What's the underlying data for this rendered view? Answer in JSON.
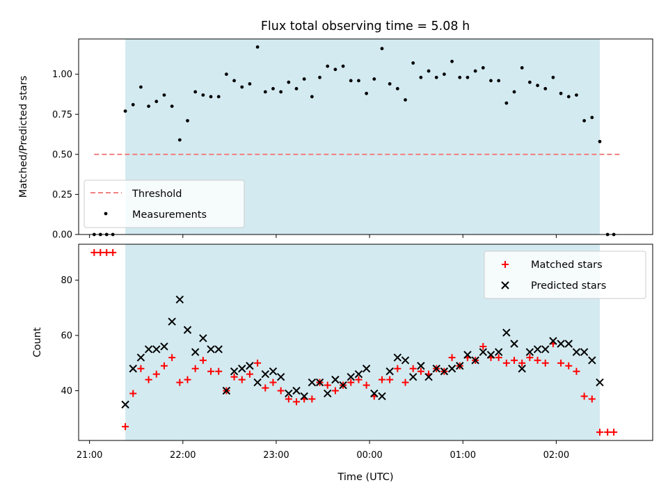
{
  "chart_data": [
    {
      "type": "scatter",
      "title": "Flux total observing time = 5.08 h",
      "ylabel": "Matched/Predicted stars",
      "xlabel": "",
      "ylim": [
        0,
        1.22
      ],
      "yticks": [
        "0.00",
        "0.25",
        "0.50",
        "0.75",
        "1.00"
      ],
      "ytick_values": [
        0,
        0.25,
        0.5,
        0.75,
        1.0
      ],
      "shaded_interval": [
        "21:23",
        "02:28"
      ],
      "shade_color": "#d3eaf0",
      "legend": {
        "position": "lower left"
      },
      "series": [
        {
          "name": "Threshold",
          "style": "dashed-line",
          "color": "#f08080",
          "x": [
            "21:03",
            "02:42"
          ],
          "y": [
            0.5,
            0.5
          ]
        },
        {
          "name": "Measurements",
          "style": "dot",
          "color": "#000000",
          "x": [
            "21:03",
            "21:07",
            "21:11",
            "21:15",
            "21:23",
            "21:28",
            "21:33",
            "21:38",
            "21:43",
            "21:48",
            "21:53",
            "21:58",
            "22:03",
            "22:08",
            "22:13",
            "22:18",
            "22:23",
            "22:28",
            "22:33",
            "22:38",
            "22:43",
            "22:48",
            "22:53",
            "22:58",
            "23:03",
            "23:08",
            "23:13",
            "23:18",
            "23:23",
            "23:28",
            "23:33",
            "23:38",
            "23:43",
            "23:48",
            "23:53",
            "23:58",
            "00:03",
            "00:08",
            "00:13",
            "00:18",
            "00:23",
            "00:28",
            "00:33",
            "00:38",
            "00:43",
            "00:48",
            "00:53",
            "00:58",
            "01:03",
            "01:08",
            "01:13",
            "01:18",
            "01:23",
            "01:28",
            "01:33",
            "01:38",
            "01:43",
            "01:48",
            "01:53",
            "01:58",
            "02:03",
            "02:08",
            "02:13",
            "02:18",
            "02:23",
            "02:28",
            "02:33",
            "02:37"
          ],
          "y": [
            0,
            0,
            0,
            0,
            0.77,
            0.81,
            0.92,
            0.8,
            0.83,
            0.87,
            0.8,
            0.59,
            0.71,
            0.89,
            0.87,
            0.86,
            0.86,
            1.0,
            0.96,
            0.92,
            0.94,
            1.17,
            0.89,
            0.91,
            0.89,
            0.95,
            0.91,
            0.97,
            0.86,
            0.98,
            1.05,
            1.03,
            1.05,
            0.96,
            0.96,
            0.88,
            0.97,
            1.16,
            0.94,
            0.91,
            0.84,
            1.07,
            0.98,
            1.02,
            0.98,
            1.0,
            1.08,
            0.98,
            0.98,
            1.02,
            1.04,
            0.96,
            0.96,
            0.82,
            0.89,
            1.04,
            0.95,
            0.93,
            0.91,
            0.98,
            0.88,
            0.86,
            0.87,
            0.71,
            0.73,
            0.58,
            0,
            0
          ]
        }
      ]
    },
    {
      "type": "scatter",
      "title": "",
      "ylabel": "Count",
      "xlabel": "Time (UTC)",
      "ylim": [
        22,
        93
      ],
      "yticks": [
        "40",
        "60",
        "80"
      ],
      "ytick_values": [
        40,
        60,
        80
      ],
      "xticks": [
        "21:00",
        "22:00",
        "23:00",
        "00:00",
        "01:00",
        "02:00"
      ],
      "xlim": [
        "20:53",
        "03:02"
      ],
      "shaded_interval": [
        "21:23",
        "02:28"
      ],
      "shade_color": "#d3eaf0",
      "legend": {
        "position": "upper right"
      },
      "series": [
        {
          "name": "Matched stars",
          "style": "plus",
          "color": "#ff0000",
          "x": [
            "21:03",
            "21:07",
            "21:11",
            "21:15",
            "21:23",
            "21:28",
            "21:33",
            "21:38",
            "21:43",
            "21:48",
            "21:53",
            "21:58",
            "22:03",
            "22:08",
            "22:13",
            "22:18",
            "22:23",
            "22:28",
            "22:33",
            "22:38",
            "22:43",
            "22:48",
            "22:53",
            "22:58",
            "23:03",
            "23:08",
            "23:13",
            "23:18",
            "23:23",
            "23:28",
            "23:33",
            "23:38",
            "23:43",
            "23:48",
            "23:53",
            "23:58",
            "00:03",
            "00:08",
            "00:13",
            "00:18",
            "00:23",
            "00:28",
            "00:33",
            "00:38",
            "00:43",
            "00:48",
            "00:53",
            "00:58",
            "01:03",
            "01:08",
            "01:13",
            "01:18",
            "01:23",
            "01:28",
            "01:33",
            "01:38",
            "01:43",
            "01:48",
            "01:53",
            "01:58",
            "02:03",
            "02:08",
            "02:13",
            "02:18",
            "02:23",
            "02:28",
            "02:33",
            "02:37"
          ],
          "y": [
            90,
            90,
            90,
            90,
            27,
            39,
            48,
            44,
            46,
            49,
            52,
            43,
            44,
            48,
            51,
            47,
            47,
            40,
            45,
            44,
            46,
            50,
            41,
            43,
            40,
            37,
            36,
            37,
            37,
            43,
            42,
            40,
            42,
            43,
            44,
            42,
            38,
            44,
            44,
            48,
            43,
            48,
            47,
            46,
            48,
            47,
            52,
            49,
            52,
            51,
            56,
            52,
            52,
            50,
            51,
            50,
            52,
            51,
            50,
            57,
            50,
            49,
            47,
            38,
            37,
            25,
            25,
            25
          ]
        },
        {
          "name": "Predicted stars",
          "style": "x",
          "color": "#000000",
          "x": [
            "21:23",
            "21:28",
            "21:33",
            "21:38",
            "21:43",
            "21:48",
            "21:53",
            "21:58",
            "22:03",
            "22:08",
            "22:13",
            "22:18",
            "22:23",
            "22:28",
            "22:33",
            "22:38",
            "22:43",
            "22:48",
            "22:53",
            "22:58",
            "23:03",
            "23:08",
            "23:13",
            "23:18",
            "23:23",
            "23:28",
            "23:33",
            "23:38",
            "23:43",
            "23:48",
            "23:53",
            "23:58",
            "00:03",
            "00:08",
            "00:13",
            "00:18",
            "00:23",
            "00:28",
            "00:33",
            "00:38",
            "00:43",
            "00:48",
            "00:53",
            "00:58",
            "01:03",
            "01:08",
            "01:13",
            "01:18",
            "01:23",
            "01:28",
            "01:33",
            "01:38",
            "01:43",
            "01:48",
            "01:53",
            "01:58",
            "02:03",
            "02:08",
            "02:13",
            "02:18",
            "02:23",
            "02:28"
          ],
          "y": [
            35,
            48,
            52,
            55,
            55,
            56,
            65,
            73,
            62,
            54,
            59,
            55,
            55,
            40,
            47,
            48,
            49,
            43,
            46,
            47,
            45,
            39,
            40,
            38,
            43,
            43,
            39,
            44,
            42,
            45,
            46,
            48,
            39,
            38,
            47,
            52,
            51,
            45,
            49,
            45,
            48,
            47,
            48,
            49,
            53,
            51,
            54,
            53,
            54,
            61,
            57,
            48,
            54,
            55,
            55,
            58,
            57,
            57,
            54,
            54,
            51,
            43
          ]
        }
      ]
    }
  ]
}
